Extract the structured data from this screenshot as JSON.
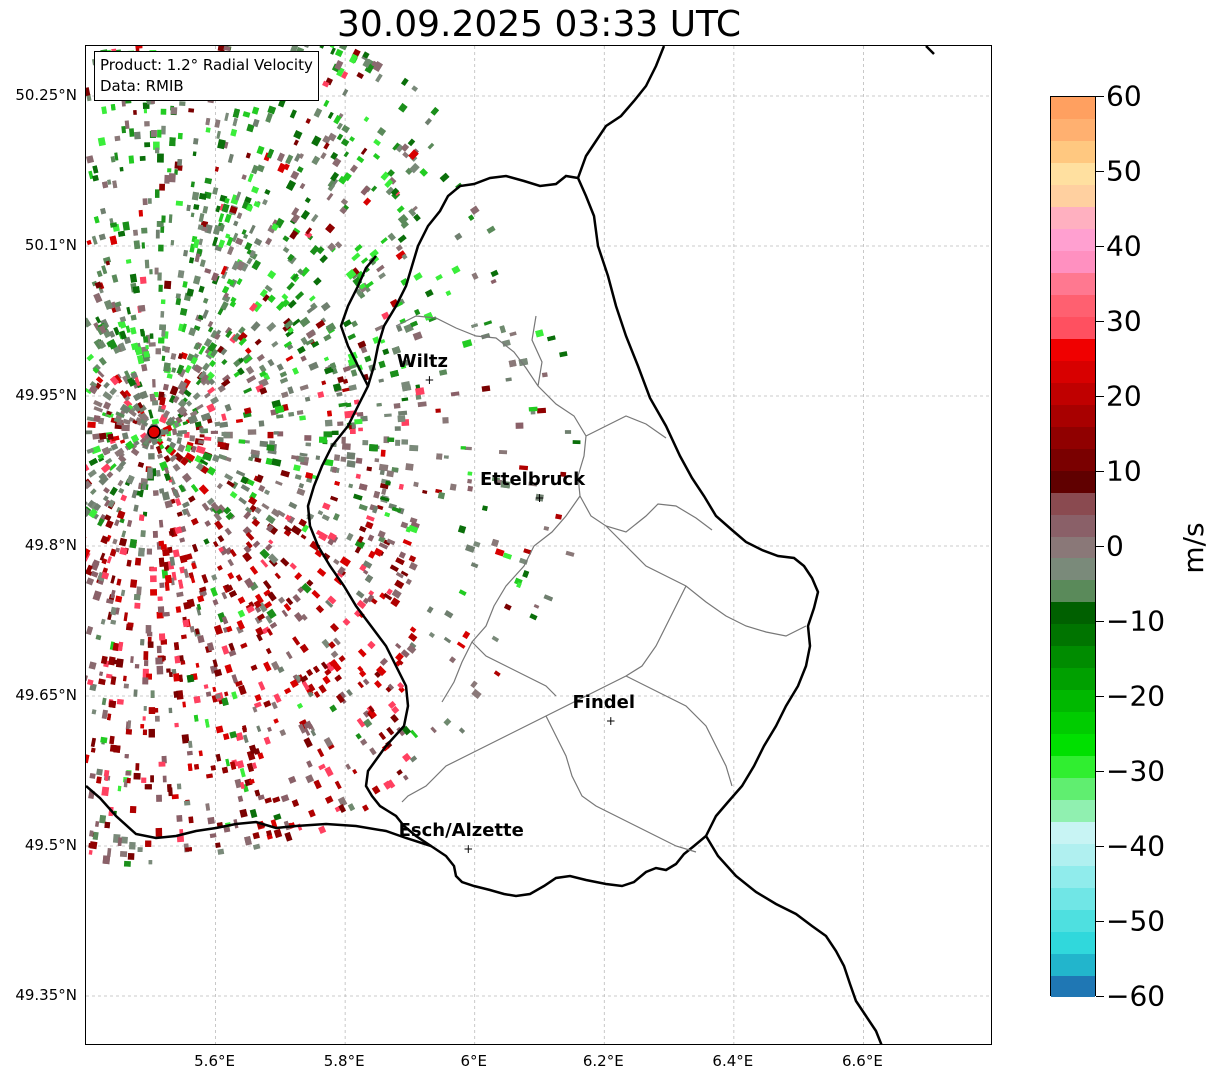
{
  "title": "30.09.2025 03:33 UTC",
  "info": {
    "product": "Product: 1.2° Radial Velocity",
    "data_source": "Data: RMIB"
  },
  "axes": {
    "lat_ticks": [
      {
        "value": 50.25,
        "label": "50.25°N"
      },
      {
        "value": 50.1,
        "label": "50.1°N"
      },
      {
        "value": 49.95,
        "label": "49.95°N"
      },
      {
        "value": 49.8,
        "label": "49.8°N"
      },
      {
        "value": 49.65,
        "label": "49.65°N"
      },
      {
        "value": 49.5,
        "label": "49.5°N"
      },
      {
        "value": 49.35,
        "label": "49.35°N"
      }
    ],
    "lon_ticks": [
      {
        "value": 5.6,
        "label": "5.6°E"
      },
      {
        "value": 5.8,
        "label": "5.8°E"
      },
      {
        "value": 6.0,
        "label": "6°E"
      },
      {
        "value": 6.2,
        "label": "6.2°E"
      },
      {
        "value": 6.4,
        "label": "6.4°E"
      },
      {
        "value": 6.6,
        "label": "6.6°E"
      }
    ],
    "lon_range": [
      5.4,
      6.8
    ],
    "lat_range": [
      49.3,
      50.3
    ]
  },
  "cities": [
    {
      "name": "Wiltz",
      "lon": 5.93,
      "lat": 49.966
    },
    {
      "name": "Ettelbruck",
      "lon": 6.1,
      "lat": 49.848
    },
    {
      "name": "Findel",
      "lon": 6.21,
      "lat": 49.625
    },
    {
      "name": "Esch/Alzette",
      "lon": 5.99,
      "lat": 49.497
    }
  ],
  "radar_site": {
    "name": "radar",
    "lon": 5.505,
    "lat": 49.914
  },
  "colorbar": {
    "unit": "m/s",
    "min": -60,
    "max": 60,
    "ticks": [
      {
        "value": 60,
        "label": "60"
      },
      {
        "value": 50,
        "label": "50"
      },
      {
        "value": 40,
        "label": "40"
      },
      {
        "value": 30,
        "label": "30"
      },
      {
        "value": 20,
        "label": "20"
      },
      {
        "value": 10,
        "label": "10"
      },
      {
        "value": 0,
        "label": "0"
      },
      {
        "value": -10,
        "label": "−10"
      },
      {
        "value": -20,
        "label": "−20"
      },
      {
        "value": -30,
        "label": "−30"
      },
      {
        "value": -40,
        "label": "−40"
      },
      {
        "value": -50,
        "label": "−50"
      },
      {
        "value": -60,
        "label": "−60"
      }
    ],
    "colors": [
      "#1f77b4",
      "#22b5cc",
      "#30d8dc",
      "#4ee0e0",
      "#70e6e6",
      "#90ecec",
      "#b0f0f0",
      "#c8f4f4",
      "#90f0b0",
      "#60ee70",
      "#30ee30",
      "#00e000",
      "#00cc00",
      "#00b800",
      "#00a000",
      "#008c00",
      "#007400",
      "#006000",
      "#5a8a5a",
      "#7a8a7a",
      "#8a7878",
      "#8a6068",
      "#8a4a50",
      "#600000",
      "#7a0000",
      "#900000",
      "#a80000",
      "#c00000",
      "#d80000",
      "#f00000",
      "#ff5060",
      "#ff6070",
      "#ff7890",
      "#ff90c0",
      "#ffa0d0",
      "#ffb0c0",
      "#ffd0a0",
      "#ffe0a0",
      "#ffc880",
      "#ffb070",
      "#ffa060"
    ]
  }
}
